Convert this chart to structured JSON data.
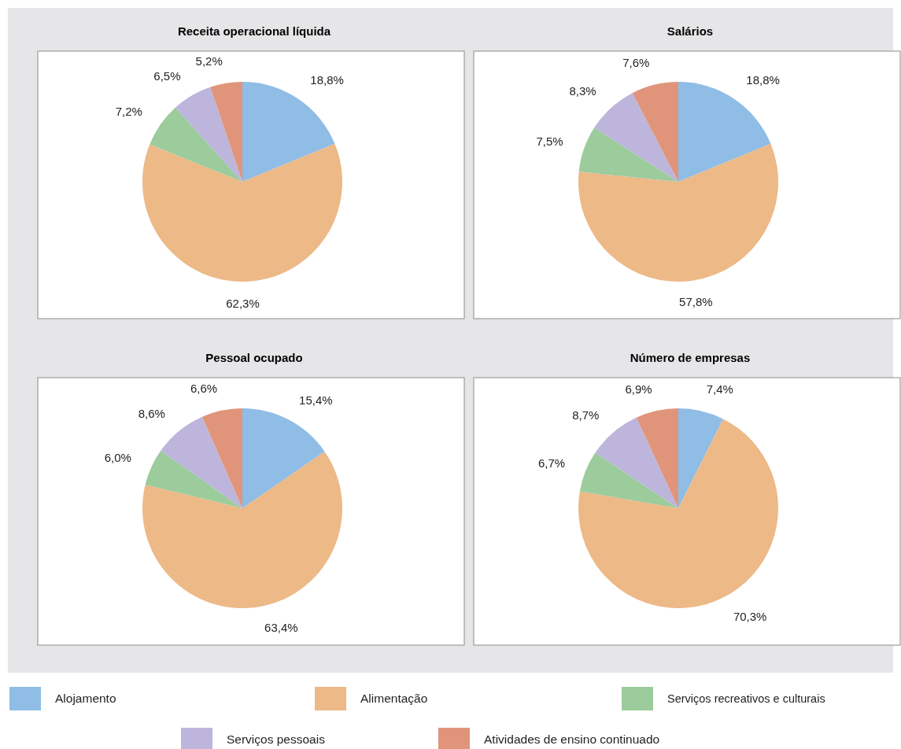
{
  "chart_data": [
    {
      "type": "pie",
      "title": "Receita operacional líquida",
      "categories": [
        "Alojamento",
        "Alimentação",
        "Serviços recreativos e culturais",
        "Serviços pessoais",
        "Atividades de ensino continuado"
      ],
      "colors": [
        "#8fbde6",
        "#ecb987",
        "#9ccb9c",
        "#bdb5dc",
        "#e0957a"
      ],
      "values": [
        18.8,
        62.3,
        7.2,
        6.5,
        5.2
      ],
      "value_labels": [
        "18,8%",
        "62,3%",
        "7,2%",
        "6,5%",
        "5,2%"
      ],
      "legend": "bottom"
    },
    {
      "type": "pie",
      "title": "Salários",
      "colors": [
        "#8fbde6",
        "#ecb987",
        "#9ccb9c",
        "#bdb5dc",
        "#e0957a"
      ],
      "values": [
        18.8,
        57.8,
        7.5,
        8.3,
        7.6
      ],
      "value_labels": [
        "18,8%",
        "57,8%",
        "7,5%",
        "8,3%",
        "7,6%"
      ]
    },
    {
      "type": "pie",
      "title": "Pessoal ocupado",
      "colors": [
        "#8fbde6",
        "#ecb987",
        "#9ccb9c",
        "#bdb5dc",
        "#e0957a"
      ],
      "values": [
        15.4,
        63.4,
        6.0,
        8.6,
        6.6
      ],
      "value_labels": [
        "15,4%",
        "63,4%",
        "6,0%",
        "8,6%",
        "6,6%"
      ]
    },
    {
      "type": "pie",
      "title": "Número de empresas",
      "colors": [
        "#8fbde6",
        "#ecb987",
        "#9ccb9c",
        "#bdb5dc",
        "#e0957a"
      ],
      "values": [
        7.4,
        70.3,
        6.7,
        8.7,
        6.9
      ],
      "value_labels": [
        "7,4%",
        "70,3%",
        "6,7%",
        "8,7%",
        "6,9%"
      ]
    }
  ]
}
